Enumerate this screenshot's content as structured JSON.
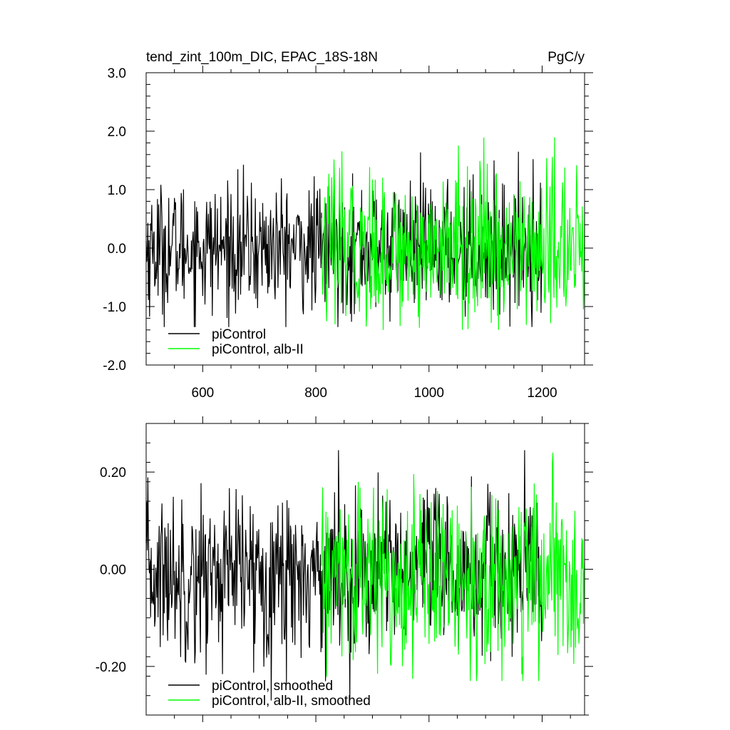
{
  "chart_data": [
    {
      "type": "line",
      "title_left": "tend_zint_100m_DIC, EPAC_18S-18N",
      "title_right": "PgC/y",
      "xlim": [
        500,
        1275
      ],
      "ylim": [
        -2.0,
        3.0
      ],
      "xticks": [
        600,
        800,
        1000,
        1200
      ],
      "xtick_labels": [
        "600",
        "800",
        "1000",
        "1200"
      ],
      "yticks": [
        -2.0,
        -1.0,
        0.0,
        1.0,
        2.0,
        3.0
      ],
      "ytick_labels": [
        "-2.0",
        "-1.0",
        "0.0",
        "1.0",
        "2.0",
        "3.0"
      ],
      "grid": false,
      "legend_position": "bottom-left",
      "series": [
        {
          "name": "piControl",
          "color": "#000000",
          "x_range": [
            500,
            1200
          ],
          "mean": 0.0,
          "std": 0.55,
          "peak": [
            1.7,
            -1.35
          ],
          "note_values_approx": true
        },
        {
          "name": "piControl, alb-II",
          "color": "#00ff00",
          "x_range": [
            810,
            1275
          ],
          "mean": 0.0,
          "std": 0.65,
          "peak": [
            2.1,
            -1.4
          ],
          "note_values_approx": true
        }
      ]
    },
    {
      "type": "line",
      "title_left": "",
      "title_right": "",
      "xlim": [
        500,
        1275
      ],
      "ylim": [
        -0.3,
        0.3
      ],
      "xticks": [
        600,
        800,
        1000,
        1200
      ],
      "xtick_labels": [
        "",
        "",
        "",
        ""
      ],
      "yticks": [
        -0.2,
        0.0,
        0.2
      ],
      "ytick_labels": [
        "-0.20",
        "0.00",
        "0.20"
      ],
      "grid": false,
      "legend_position": "bottom-left",
      "series": [
        {
          "name": "piControl, smoothed",
          "color": "#000000",
          "x_range": [
            500,
            1200
          ],
          "mean": -0.01,
          "std": 0.085,
          "peak": [
            0.245,
            -0.27
          ],
          "note_values_approx": true
        },
        {
          "name": "piControl, alb-II, smoothed",
          "color": "#00ff00",
          "x_range": [
            810,
            1275
          ],
          "mean": -0.02,
          "std": 0.09,
          "peak": [
            0.24,
            -0.23
          ],
          "note_values_approx": true
        }
      ]
    }
  ]
}
